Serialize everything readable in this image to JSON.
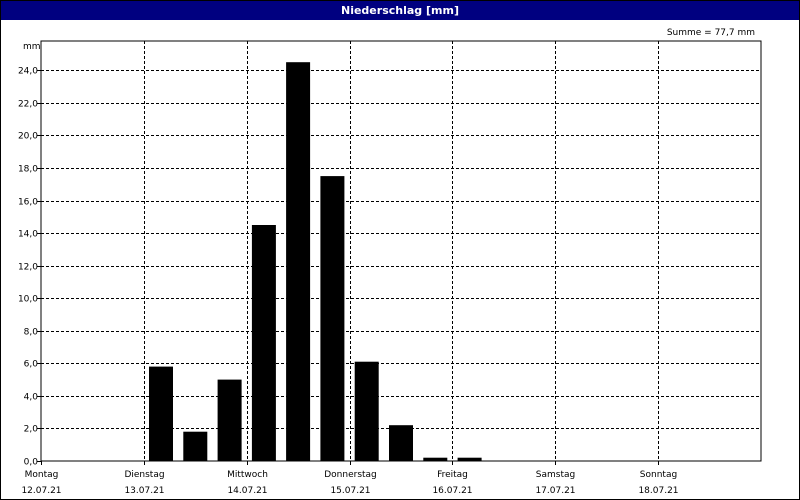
{
  "window": {
    "title": "Niederschlag [mm]"
  },
  "chart_data": {
    "type": "bar",
    "title": "Niederschlag [mm]",
    "summary": "Summe = 77,7 mm",
    "ylabel": "mm",
    "ylim": [
      0,
      25.8
    ],
    "yticks": [
      {
        "value": 0,
        "label": "0,0"
      },
      {
        "value": 2,
        "label": "2,0"
      },
      {
        "value": 4,
        "label": "4,0"
      },
      {
        "value": 6,
        "label": "6,0"
      },
      {
        "value": 8,
        "label": "8,0"
      },
      {
        "value": 10,
        "label": "10,0"
      },
      {
        "value": 12,
        "label": "12,0"
      },
      {
        "value": 14,
        "label": "14,0"
      },
      {
        "value": 16,
        "label": "16,0"
      },
      {
        "value": 18,
        "label": "18,0"
      },
      {
        "value": 20,
        "label": "20,0"
      },
      {
        "value": 22,
        "label": "22,0"
      },
      {
        "value": 24,
        "label": "24,0"
      }
    ],
    "days": [
      {
        "day": "Montag",
        "date": "12.07.21"
      },
      {
        "day": "Dienstag",
        "date": "13.07.21"
      },
      {
        "day": "Mittwoch",
        "date": "14.07.21"
      },
      {
        "day": "Donnerstag",
        "date": "15.07.21"
      },
      {
        "day": "Freitag",
        "date": "16.07.21"
      },
      {
        "day": "Samstag",
        "date": "17.07.21"
      },
      {
        "day": "Sonntag",
        "date": "18.07.21"
      }
    ],
    "interval_hours": 8,
    "values": [
      0,
      0,
      0,
      5.8,
      1.8,
      5.0,
      14.5,
      24.5,
      17.5,
      6.1,
      2.2,
      0.2,
      0.2,
      0,
      0,
      0,
      0,
      0,
      0,
      0,
      0
    ],
    "grid": true,
    "bar_color": "#000000"
  }
}
